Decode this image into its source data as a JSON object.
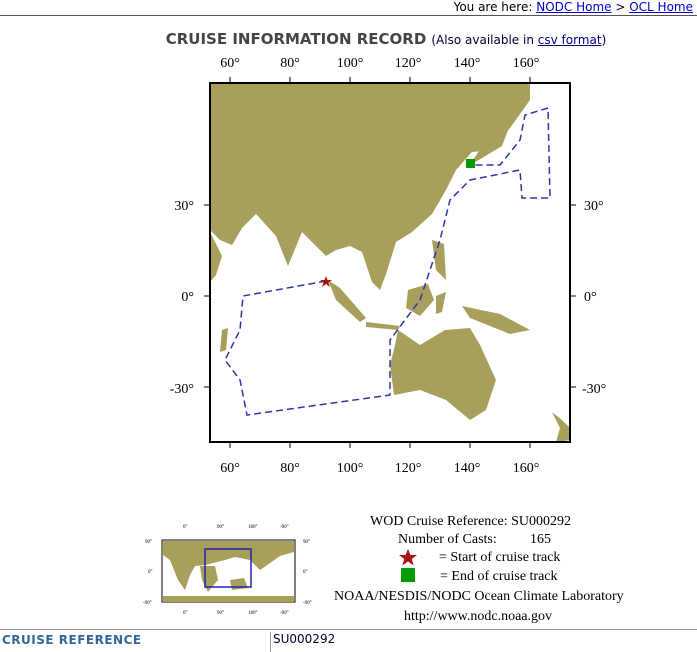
{
  "breadcrumb": {
    "prefix": "You are here:",
    "items": [
      "NODC Home",
      "OCL Home"
    ],
    "separator": ">"
  },
  "header": {
    "title": "CRUISE INFORMATION RECORD",
    "also_prefix": "(Also available in ",
    "csv_link": "csv format",
    "also_suffix": ")"
  },
  "map": {
    "lon_ticks": [
      "60°",
      "80°",
      "100°",
      "120°",
      "140°",
      "160°"
    ],
    "lat_ticks": [
      "30°",
      "0°",
      "-30°"
    ],
    "land_color": "#a89f5c",
    "track_color": "#3333aa",
    "start_marker": "star-icon",
    "start_color": "#aa1111",
    "end_marker": "square-icon",
    "end_color": "#009900"
  },
  "minimap": {
    "lon_ticks": [
      "0°",
      "90°",
      "180°",
      "-90°"
    ],
    "lat_ticks": [
      "90°",
      "0°",
      "-90°"
    ]
  },
  "legend": {
    "reference": "WOD Cruise Reference: SU000292",
    "casts_label": "Number of Casts:",
    "casts_value": "165",
    "start": "= Start of cruise track",
    "end": "= End of cruise track",
    "org": "NOAA/NESDIS/NODC Ocean Climate Laboratory",
    "url": "http://www.nodc.noaa.gov"
  },
  "table": {
    "label": "CRUISE REFERENCE",
    "value": "SU000292"
  }
}
